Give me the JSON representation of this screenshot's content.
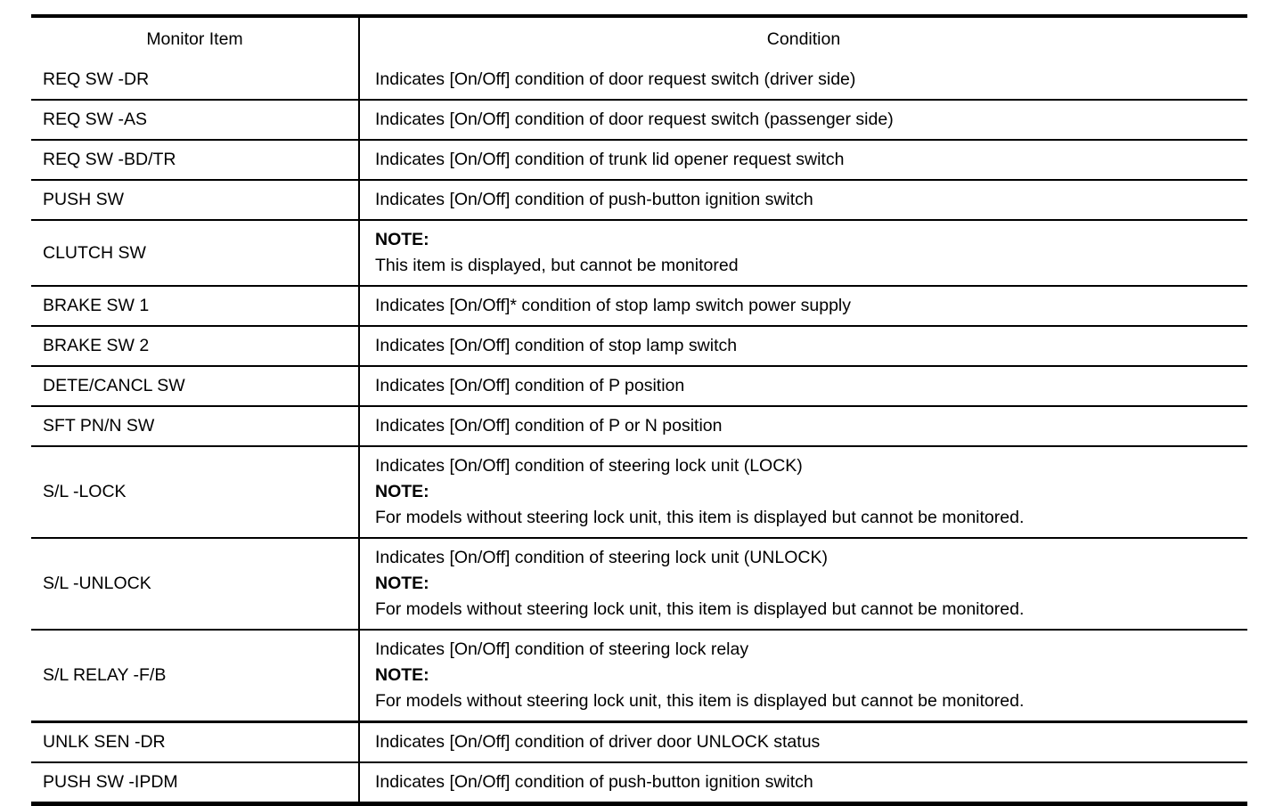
{
  "page": {
    "background": "#ffffff",
    "text_color": "#000000",
    "rule_color": "#000000"
  },
  "table": {
    "column_headers": [
      "Monitor Item",
      "Condition"
    ],
    "rows": [
      {
        "item": "REQ SW -DR",
        "lines": [
          {
            "text": "Indicates [On/Off] condition of door request switch (driver side)",
            "bold": false
          }
        ]
      },
      {
        "item": "REQ SW -AS",
        "lines": [
          {
            "text": "Indicates [On/Off] condition of door request switch (passenger side)",
            "bold": false
          }
        ]
      },
      {
        "item": "REQ SW -BD/TR",
        "lines": [
          {
            "text": "Indicates [On/Off] condition of trunk lid opener request switch",
            "bold": false
          }
        ]
      },
      {
        "item": "PUSH SW",
        "lines": [
          {
            "text": "Indicates [On/Off] condition of push-button ignition switch",
            "bold": false
          }
        ]
      },
      {
        "item": "CLUTCH SW",
        "lines": [
          {
            "text": "NOTE:",
            "bold": true
          },
          {
            "text": "This item is displayed, but cannot be monitored",
            "bold": false
          }
        ]
      },
      {
        "item": "BRAKE SW 1",
        "lines": [
          {
            "text": "Indicates [On/Off]* condition of stop lamp switch power supply",
            "bold": false
          }
        ]
      },
      {
        "item": "BRAKE SW 2",
        "lines": [
          {
            "text": "Indicates [On/Off] condition of stop lamp switch",
            "bold": false
          }
        ]
      },
      {
        "item": "DETE/CANCL SW",
        "lines": [
          {
            "text": "Indicates [On/Off] condition of P position",
            "bold": false
          }
        ]
      },
      {
        "item": "SFT PN/N SW",
        "lines": [
          {
            "text": "Indicates [On/Off] condition of P or N position",
            "bold": false
          }
        ]
      },
      {
        "item": "S/L -LOCK",
        "lines": [
          {
            "text": "Indicates [On/Off] condition of steering lock unit (LOCK)",
            "bold": false
          },
          {
            "text": "NOTE:",
            "bold": true
          },
          {
            "text": "For models without steering lock unit, this item is displayed but cannot be monitored.",
            "bold": false
          }
        ]
      },
      {
        "item": "S/L -UNLOCK",
        "lines": [
          {
            "text": "Indicates [On/Off] condition of steering lock unit (UNLOCK)",
            "bold": false
          },
          {
            "text": "NOTE:",
            "bold": true
          },
          {
            "text": "For models without steering lock unit, this item is displayed but cannot be monitored.",
            "bold": false
          }
        ]
      },
      {
        "item": "S/L RELAY -F/B",
        "lines": [
          {
            "text": "Indicates [On/Off] condition of steering lock relay",
            "bold": false
          },
          {
            "text": "NOTE:",
            "bold": true
          },
          {
            "text": "For models without steering lock unit, this item is displayed but cannot be monitored.",
            "bold": false
          }
        ]
      },
      {
        "item": "UNLK SEN -DR",
        "section_break": true,
        "lines": [
          {
            "text": "Indicates [On/Off] condition of driver door UNLOCK status",
            "bold": false
          }
        ]
      },
      {
        "item": "PUSH SW -IPDM",
        "lines": [
          {
            "text": "Indicates [On/Off] condition of push-button ignition switch",
            "bold": false
          }
        ]
      }
    ]
  }
}
